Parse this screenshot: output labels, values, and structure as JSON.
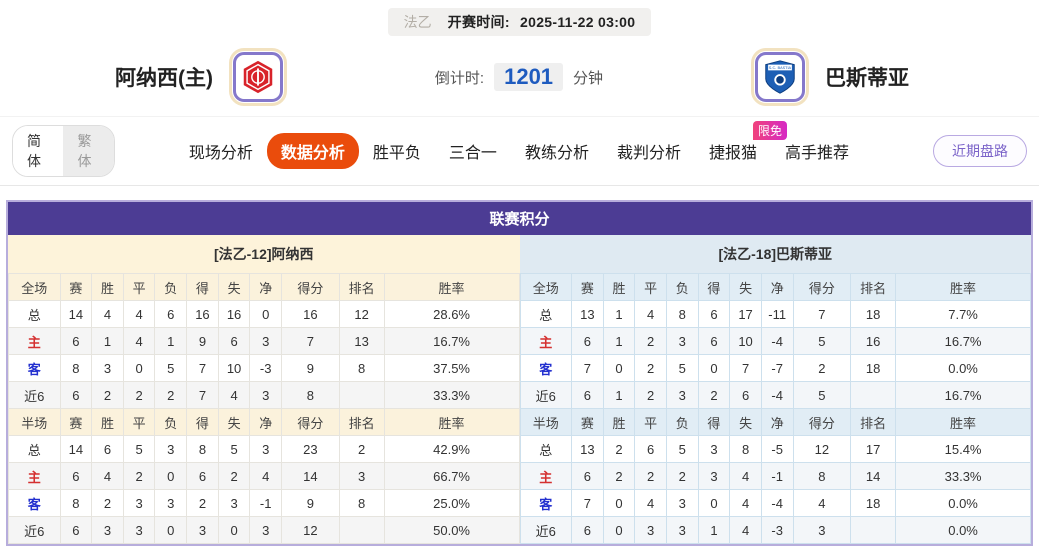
{
  "top_bar": {
    "league": "法乙",
    "kickoff_label": "开赛时间:",
    "kickoff_time": "2025-11-22 03:00"
  },
  "match_header": {
    "home_team": "阿纳西(主)",
    "away_team": "巴斯蒂亚",
    "countdown_label": "倒计时:",
    "countdown_value": "1201",
    "countdown_unit": "分钟"
  },
  "nav": {
    "lang_simplified": "简体",
    "lang_traditional": "繁体",
    "tabs": [
      {
        "label": "现场分析",
        "active": false
      },
      {
        "label": "数据分析",
        "active": true
      },
      {
        "label": "胜平负",
        "active": false
      },
      {
        "label": "三合一",
        "active": false
      },
      {
        "label": "教练分析",
        "active": false
      },
      {
        "label": "裁判分析",
        "active": false
      },
      {
        "label": "捷报猫",
        "active": false,
        "badge": "限免"
      },
      {
        "label": "高手推荐",
        "active": false
      }
    ],
    "recent_button": "近期盘路"
  },
  "league_table": {
    "title": "联赛积分",
    "home": {
      "team_header": "[法乙-12]阿纳西",
      "full": {
        "columns": [
          "全场",
          "赛",
          "胜",
          "平",
          "负",
          "得",
          "失",
          "净",
          "得分",
          "排名",
          "胜率"
        ],
        "rows": [
          {
            "label": "总",
            "cells": [
              "14",
              "4",
              "4",
              "6",
              "16",
              "16",
              "0",
              "16",
              "12",
              "28.6%"
            ]
          },
          {
            "label": "主",
            "cells": [
              "6",
              "1",
              "4",
              "1",
              "9",
              "6",
              "3",
              "7",
              "13",
              "16.7%"
            ]
          },
          {
            "label": "客",
            "cells": [
              "8",
              "3",
              "0",
              "5",
              "7",
              "10",
              "-3",
              "9",
              "8",
              "37.5%"
            ]
          },
          {
            "label": "近6",
            "cells": [
              "6",
              "2",
              "2",
              "2",
              "7",
              "4",
              "3",
              "8",
              "",
              "33.3%"
            ]
          }
        ]
      },
      "half": {
        "columns": [
          "半场",
          "赛",
          "胜",
          "平",
          "负",
          "得",
          "失",
          "净",
          "得分",
          "排名",
          "胜率"
        ],
        "rows": [
          {
            "label": "总",
            "cells": [
              "14",
              "6",
              "5",
              "3",
              "8",
              "5",
              "3",
              "23",
              "2",
              "42.9%"
            ]
          },
          {
            "label": "主",
            "cells": [
              "6",
              "4",
              "2",
              "0",
              "6",
              "2",
              "4",
              "14",
              "3",
              "66.7%"
            ]
          },
          {
            "label": "客",
            "cells": [
              "8",
              "2",
              "3",
              "3",
              "2",
              "3",
              "-1",
              "9",
              "8",
              "25.0%"
            ]
          },
          {
            "label": "近6",
            "cells": [
              "6",
              "3",
              "3",
              "0",
              "3",
              "0",
              "3",
              "12",
              "",
              "50.0%"
            ]
          }
        ]
      }
    },
    "away": {
      "team_header": "[法乙-18]巴斯蒂亚",
      "full": {
        "columns": [
          "全场",
          "赛",
          "胜",
          "平",
          "负",
          "得",
          "失",
          "净",
          "得分",
          "排名",
          "胜率"
        ],
        "rows": [
          {
            "label": "总",
            "cells": [
              "13",
              "1",
              "4",
              "8",
              "6",
              "17",
              "-11",
              "7",
              "18",
              "7.7%"
            ]
          },
          {
            "label": "主",
            "cells": [
              "6",
              "1",
              "2",
              "3",
              "6",
              "10",
              "-4",
              "5",
              "16",
              "16.7%"
            ]
          },
          {
            "label": "客",
            "cells": [
              "7",
              "0",
              "2",
              "5",
              "0",
              "7",
              "-7",
              "2",
              "18",
              "0.0%"
            ]
          },
          {
            "label": "近6",
            "cells": [
              "6",
              "1",
              "2",
              "3",
              "2",
              "6",
              "-4",
              "5",
              "",
              "16.7%"
            ]
          }
        ]
      },
      "half": {
        "columns": [
          "半场",
          "赛",
          "胜",
          "平",
          "负",
          "得",
          "失",
          "净",
          "得分",
          "排名",
          "胜率"
        ],
        "rows": [
          {
            "label": "总",
            "cells": [
              "13",
              "2",
              "6",
              "5",
              "3",
              "8",
              "-5",
              "12",
              "17",
              "15.4%"
            ]
          },
          {
            "label": "主",
            "cells": [
              "6",
              "2",
              "2",
              "2",
              "3",
              "4",
              "-1",
              "8",
              "14",
              "33.3%"
            ]
          },
          {
            "label": "客",
            "cells": [
              "7",
              "0",
              "4",
              "3",
              "0",
              "4",
              "-4",
              "4",
              "18",
              "0.0%"
            ]
          },
          {
            "label": "近6",
            "cells": [
              "6",
              "0",
              "3",
              "3",
              "1",
              "4",
              "-3",
              "3",
              "",
              "0.0%"
            ]
          }
        ]
      }
    }
  },
  "colors": {
    "accent_active_tab": "#ea4c0c",
    "table_title_purple": "#4c3c94",
    "home_panel_cream": "#fdf3da",
    "away_panel_blue": "#dfeaf2",
    "home_row_red": "#d43030",
    "away_row_blue": "#2330cf",
    "countdown_blue": "#1e5bbf",
    "badge_pink": "#e8368f",
    "recent_button_purple": "#7b63c9"
  },
  "icons": {
    "home_logo": "annecy-crest-icon",
    "away_logo": "bastia-crest-icon"
  }
}
